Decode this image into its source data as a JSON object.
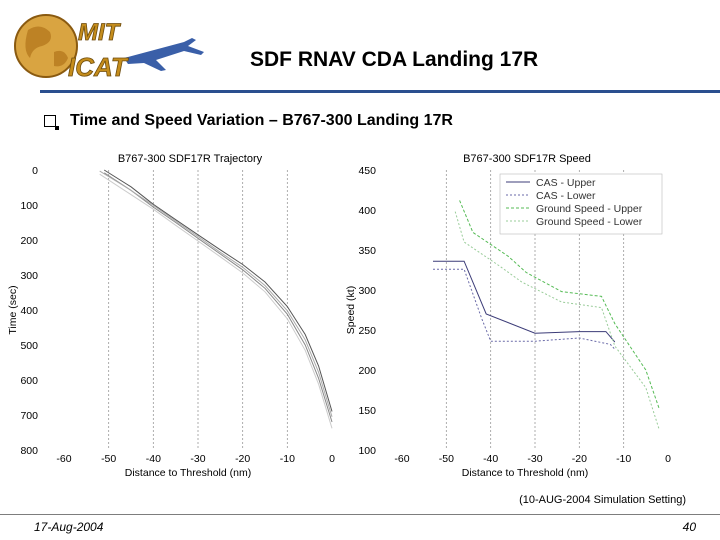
{
  "header": {
    "logo_text_top": "MIT",
    "logo_text_bottom": "ICAT",
    "title": "SDF RNAV CDA Landing 17R"
  },
  "bullet": {
    "icon": "checkbox-bullet-icon",
    "text": "Time and Speed Variation – B767-300 Landing 17R"
  },
  "simulation_note": "(10-AUG-2004 Simulation Setting)",
  "footer": {
    "date": "17-Aug-2004",
    "page": "40"
  },
  "chart_data": [
    {
      "type": "line",
      "title": "B767-300 SDF17R Trajectory",
      "xlabel": "Distance to Threshold (nm)",
      "ylabel": "Time (sec)",
      "xlim": [
        -60,
        0
      ],
      "ylim": [
        0,
        800
      ],
      "y_inverted": true,
      "xticks": [
        "-60",
        "-50",
        "-40",
        "-30",
        "-20",
        "-10",
        "0"
      ],
      "yticks": [
        "0",
        "100",
        "200",
        "300",
        "400",
        "500",
        "600",
        "700",
        "800"
      ],
      "grid": true,
      "series": [
        {
          "color": "#555555",
          "points": [
            [
              -51,
              0
            ],
            [
              -45,
              48
            ],
            [
              -40,
              98
            ],
            [
              -35,
              142
            ],
            [
              -30,
              185
            ],
            [
              -25,
              228
            ],
            [
              -20,
              270
            ],
            [
              -15,
              320
            ],
            [
              -10,
              390
            ],
            [
              -6,
              470
            ],
            [
              -3,
              560
            ],
            [
              0,
              690
            ]
          ]
        },
        {
          "color": "#888888",
          "points": [
            [
              -51,
              8
            ],
            [
              -45,
              58
            ],
            [
              -40,
              106
            ],
            [
              -35,
              150
            ],
            [
              -30,
              195
            ],
            [
              -25,
              240
            ],
            [
              -20,
              285
            ],
            [
              -15,
              338
            ],
            [
              -10,
              412
            ],
            [
              -6,
              500
            ],
            [
              -3,
              595
            ],
            [
              0,
              720
            ]
          ]
        },
        {
          "color": "#aaaaaa",
          "points": [
            [
              -52,
              3
            ],
            [
              -46,
              50
            ],
            [
              -40,
              101
            ],
            [
              -35,
              146
            ],
            [
              -30,
              190
            ],
            [
              -25,
              235
            ],
            [
              -20,
              278
            ],
            [
              -15,
              330
            ],
            [
              -10,
              402
            ],
            [
              -6,
              485
            ],
            [
              -3,
              578
            ],
            [
              0,
              705
            ]
          ]
        },
        {
          "color": "#cccccc",
          "points": [
            [
              -52,
              12
            ],
            [
              -46,
              62
            ],
            [
              -40,
              112
            ],
            [
              -35,
              158
            ],
            [
              -30,
              203
            ],
            [
              -25,
              248
            ],
            [
              -20,
              294
            ],
            [
              -15,
              348
            ],
            [
              -10,
              425
            ],
            [
              -6,
              515
            ],
            [
              -3,
              612
            ],
            [
              0,
              738
            ]
          ]
        }
      ]
    },
    {
      "type": "line",
      "title": "B767-300 SDF17R Speed",
      "xlabel": "Distance to Threshold (nm)",
      "ylabel": "Speed (kt)",
      "xlim": [
        -60,
        0
      ],
      "ylim": [
        100,
        450
      ],
      "xticks": [
        "-60",
        "-50",
        "-40",
        "-30",
        "-20",
        "-10",
        "0"
      ],
      "yticks": [
        "100",
        "150",
        "200",
        "250",
        "300",
        "350",
        "400",
        "450"
      ],
      "grid": true,
      "legend_position": "top-right",
      "series": [
        {
          "name": "CAS - Upper",
          "color": "#3c3c78",
          "dash": "",
          "points": [
            [
              -53,
              336
            ],
            [
              -46,
              336
            ],
            [
              -41,
              270
            ],
            [
              -30,
              246
            ],
            [
              -20,
              248
            ],
            [
              -14,
              248
            ],
            [
              -12,
              235
            ]
          ]
        },
        {
          "name": "CAS - Lower",
          "color": "#6a6aa8",
          "dash": "2,2",
          "points": [
            [
              -53,
              326
            ],
            [
              -46,
              326
            ],
            [
              -42,
              264
            ],
            [
              -40,
              236
            ],
            [
              -30,
              236
            ],
            [
              -20,
              240
            ],
            [
              -13,
              232
            ],
            [
              -12,
              226
            ]
          ]
        },
        {
          "name": "Ground Speed - Upper",
          "color": "#55bb55",
          "dash": "3,2",
          "points": [
            [
              -47,
              412
            ],
            [
              -44,
              372
            ],
            [
              -36,
              342
            ],
            [
              -32,
              322
            ],
            [
              -24,
              298
            ],
            [
              -15,
              292
            ],
            [
              -12,
              258
            ],
            [
              -5,
              200
            ],
            [
              -2,
              152
            ]
          ]
        },
        {
          "name": "Ground Speed - Lower",
          "color": "#99cc99",
          "dash": "2,2",
          "points": [
            [
              -48,
              398
            ],
            [
              -46,
              360
            ],
            [
              -38,
              330
            ],
            [
              -33,
              310
            ],
            [
              -24,
              285
            ],
            [
              -15,
              278
            ],
            [
              -12,
              230
            ],
            [
              -5,
              178
            ],
            [
              -2,
              126
            ]
          ]
        }
      ]
    }
  ]
}
